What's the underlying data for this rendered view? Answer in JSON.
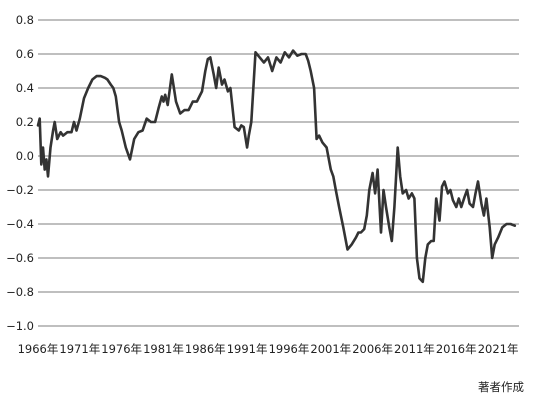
{
  "chart_data": {
    "type": "line",
    "title": "",
    "xlabel": "",
    "ylabel": "",
    "xlim": [
      1966,
      2023.5
    ],
    "ylim": [
      -1.0,
      0.8
    ],
    "grid": true,
    "y_ticks": [
      0.8,
      0.6,
      0.4,
      0.2,
      0.0,
      -0.2,
      -0.4,
      -0.6,
      -0.8,
      -1.0
    ],
    "y_tick_labels": [
      "0.8",
      "0.6",
      "0.4",
      "0.2",
      "0.0",
      "−0.2",
      "−0.4",
      "−0.6",
      "−0.8",
      "−1.0"
    ],
    "x_ticks": [
      1966,
      1971,
      1976,
      1981,
      1986,
      1991,
      1996,
      2001,
      2006,
      2011,
      2016,
      2021
    ],
    "x_tick_labels": [
      "1966年",
      "1971年",
      "1976年",
      "1981年",
      "1986年",
      "1991年",
      "1996年",
      "2001年",
      "2006年",
      "2011年",
      "2016年",
      "2021年"
    ],
    "series": [
      {
        "color": "#333333",
        "x": [
          1966.0,
          1966.2,
          1966.4,
          1966.6,
          1966.8,
          1967.0,
          1967.2,
          1967.5,
          1967.8,
          1968.0,
          1968.3,
          1968.7,
          1969.0,
          1969.5,
          1970.0,
          1970.3,
          1970.6,
          1971.0,
          1971.5,
          1972.0,
          1972.5,
          1973.0,
          1973.5,
          1974.0,
          1974.3,
          1974.7,
          1975.0,
          1975.3,
          1975.7,
          1976.0,
          1976.5,
          1977.0,
          1977.5,
          1978.0,
          1978.5,
          1979.0,
          1979.5,
          1980.0,
          1980.4,
          1980.8,
          1981.0,
          1981.2,
          1981.5,
          1982.0,
          1982.5,
          1983.0,
          1983.5,
          1984.0,
          1984.5,
          1985.0,
          1985.3,
          1985.6,
          1986.0,
          1986.3,
          1986.6,
          1987.0,
          1987.3,
          1987.6,
          1988.0,
          1988.3,
          1988.7,
          1989.0,
          1989.5,
          1990.0,
          1990.3,
          1990.6,
          1991.0,
          1991.2,
          1991.5,
          1992.0,
          1992.5,
          1993.0,
          1993.5,
          1994.0,
          1994.5,
          1995.0,
          1995.5,
          1996.0,
          1996.5,
          1997.0,
          1997.5,
          1998.0,
          1998.3,
          1998.6,
          1999.0,
          1999.3,
          1999.6,
          2000.0,
          2000.5,
          2001.0,
          2001.3,
          2001.6,
          2002.0,
          2002.5,
          2003.0,
          2003.5,
          2004.0,
          2004.3,
          2004.6,
          2005.0,
          2005.3,
          2005.6,
          2006.0,
          2006.3,
          2006.6,
          2007.0,
          2007.3,
          2007.6,
          2008.0,
          2008.3,
          2008.6,
          2009.0,
          2009.3,
          2009.6,
          2010.0,
          2010.3,
          2010.7,
          2011.0,
          2011.3,
          2011.6,
          2012.0,
          2012.3,
          2012.6,
          2013.0,
          2013.3,
          2013.6,
          2014.0,
          2014.3,
          2014.6,
          2015.0,
          2015.3,
          2015.6,
          2016.0,
          2016.3,
          2016.6,
          2017.0,
          2017.3,
          2017.6,
          2018.0,
          2018.3,
          2018.6,
          2019.0,
          2019.3,
          2019.6,
          2020.0,
          2020.3,
          2020.6,
          2021.0,
          2021.5,
          2022.0,
          2022.5,
          2023.0
        ],
        "values": [
          0.18,
          0.22,
          -0.05,
          0.05,
          -0.08,
          -0.02,
          -0.12,
          0.05,
          0.15,
          0.2,
          0.1,
          0.14,
          0.12,
          0.14,
          0.14,
          0.2,
          0.15,
          0.22,
          0.34,
          0.4,
          0.45,
          0.47,
          0.47,
          0.46,
          0.45,
          0.42,
          0.4,
          0.35,
          0.2,
          0.15,
          0.05,
          -0.02,
          0.1,
          0.14,
          0.15,
          0.22,
          0.2,
          0.2,
          0.28,
          0.35,
          0.32,
          0.36,
          0.3,
          0.48,
          0.32,
          0.25,
          0.27,
          0.27,
          0.32,
          0.32,
          0.35,
          0.38,
          0.5,
          0.57,
          0.58,
          0.48,
          0.4,
          0.52,
          0.42,
          0.45,
          0.38,
          0.4,
          0.17,
          0.15,
          0.18,
          0.17,
          0.05,
          0.12,
          0.2,
          0.61,
          0.58,
          0.55,
          0.58,
          0.5,
          0.58,
          0.55,
          0.61,
          0.58,
          0.62,
          0.59,
          0.6,
          0.6,
          0.56,
          0.5,
          0.4,
          0.1,
          0.12,
          0.08,
          0.05,
          -0.08,
          -0.12,
          -0.2,
          -0.3,
          -0.42,
          -0.55,
          -0.52,
          -0.48,
          -0.45,
          -0.45,
          -0.43,
          -0.35,
          -0.2,
          -0.1,
          -0.22,
          -0.08,
          -0.45,
          -0.2,
          -0.3,
          -0.42,
          -0.5,
          -0.3,
          0.05,
          -0.12,
          -0.22,
          -0.2,
          -0.25,
          -0.22,
          -0.25,
          -0.6,
          -0.72,
          -0.74,
          -0.6,
          -0.52,
          -0.5,
          -0.5,
          -0.25,
          -0.38,
          -0.18,
          -0.15,
          -0.22,
          -0.2,
          -0.26,
          -0.3,
          -0.25,
          -0.3,
          -0.24,
          -0.2,
          -0.28,
          -0.3,
          -0.22,
          -0.15,
          -0.28,
          -0.35,
          -0.25,
          -0.42,
          -0.6,
          -0.52,
          -0.48,
          -0.42,
          -0.4,
          -0.4,
          -0.41
        ]
      }
    ]
  },
  "source_note": "著者作成"
}
